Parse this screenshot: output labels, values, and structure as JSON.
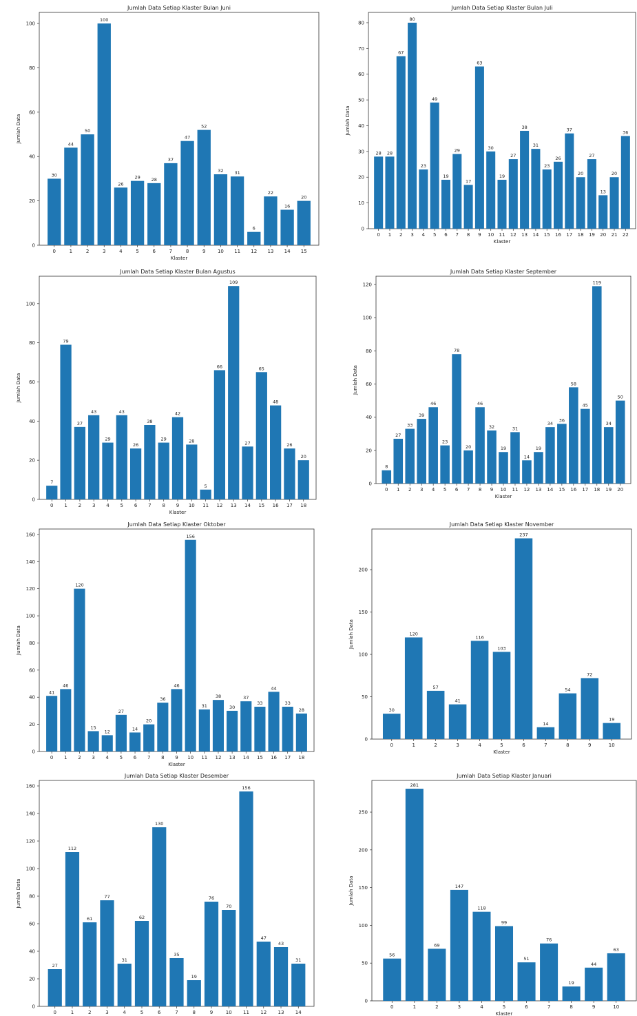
{
  "colors": {
    "bar": "#1f77b4",
    "axis": "#333333",
    "text": "#222222"
  },
  "chart_data": [
    {
      "type": "bar",
      "title": "Jumlah Data Setiap Klaster Bulan Juni",
      "xlabel": "Klaster",
      "ylabel": "Jumlah Data",
      "ylim": [
        0,
        105
      ],
      "yticks": [
        0,
        20,
        40,
        60,
        80,
        100
      ],
      "categories": [
        "0",
        "1",
        "2",
        "3",
        "4",
        "5",
        "6",
        "7",
        "8",
        "9",
        "10",
        "11",
        "12",
        "13",
        "14",
        "15"
      ],
      "values": [
        30,
        44,
        50,
        100,
        26,
        29,
        28,
        37,
        47,
        52,
        32,
        31,
        6,
        22,
        16,
        20
      ],
      "grid": false
    },
    {
      "type": "bar",
      "title": "Jumlah Data Setiap Klaster Bulan Juli",
      "xlabel": "Klaster",
      "ylabel": "Jumlah Data",
      "ylim": [
        0,
        84
      ],
      "yticks": [
        0,
        10,
        20,
        30,
        40,
        50,
        60,
        70,
        80
      ],
      "categories": [
        "0",
        "1",
        "2",
        "3",
        "4",
        "5",
        "6",
        "7",
        "8",
        "9",
        "10",
        "11",
        "12",
        "13",
        "14",
        "15",
        "16",
        "17",
        "18",
        "19",
        "20",
        "21",
        "22"
      ],
      "values": [
        28,
        28,
        67,
        80,
        23,
        49,
        19,
        29,
        17,
        63,
        30,
        19,
        27,
        38,
        31,
        23,
        26,
        37,
        20,
        27,
        13,
        20,
        36
      ],
      "grid": false
    },
    {
      "type": "bar",
      "title": "Jumlah Data Setiap Klaster Bulan Agustus",
      "xlabel": "Klaster",
      "ylabel": "Jumlah Data",
      "ylim": [
        0,
        114
      ],
      "yticks": [
        0,
        20,
        40,
        60,
        80,
        100
      ],
      "categories": [
        "0",
        "1",
        "2",
        "3",
        "4",
        "5",
        "6",
        "7",
        "8",
        "9",
        "10",
        "11",
        "12",
        "13",
        "14",
        "15",
        "16",
        "17",
        "18"
      ],
      "values": [
        7,
        79,
        37,
        43,
        29,
        43,
        26,
        38,
        29,
        42,
        28,
        5,
        66,
        109,
        27,
        65,
        48,
        26,
        20
      ],
      "grid": false
    },
    {
      "type": "bar",
      "title": "Jumlah Data Setiap Klaster September",
      "xlabel": "Klaster",
      "ylabel": "Jumlah Data",
      "ylim": [
        0,
        125
      ],
      "yticks": [
        0,
        20,
        40,
        60,
        80,
        100,
        120
      ],
      "categories": [
        "0",
        "1",
        "2",
        "3",
        "4",
        "5",
        "6",
        "7",
        "8",
        "9",
        "10",
        "11",
        "12",
        "13",
        "14",
        "15",
        "16",
        "17",
        "18",
        "19",
        "20"
      ],
      "values": [
        8,
        27,
        33,
        39,
        46,
        23,
        78,
        20,
        46,
        32,
        19,
        31,
        14,
        19,
        34,
        36,
        58,
        45,
        119,
        34,
        50
      ],
      "grid": false
    },
    {
      "type": "bar",
      "title": "Jumlah Data Setiap Klaster Oktober",
      "xlabel": "Klaster",
      "ylabel": "Jumlah Data",
      "ylim": [
        0,
        164
      ],
      "yticks": [
        0,
        20,
        40,
        60,
        80,
        100,
        120,
        140,
        160
      ],
      "categories": [
        "0",
        "1",
        "2",
        "3",
        "4",
        "5",
        "6",
        "7",
        "8",
        "9",
        "10",
        "11",
        "12",
        "13",
        "14",
        "15",
        "16",
        "17",
        "18"
      ],
      "values": [
        41,
        46,
        120,
        15,
        12,
        27,
        14,
        20,
        36,
        46,
        156,
        31,
        38,
        30,
        37,
        33,
        44,
        33,
        28
      ],
      "grid": false
    },
    {
      "type": "bar",
      "title": "Jumlah Data Setiap Klaster November",
      "xlabel": "Klaster",
      "ylabel": "Jumlah Data",
      "ylim": [
        0,
        248
      ],
      "yticks": [
        0,
        50,
        100,
        150,
        200
      ],
      "categories": [
        "0",
        "1",
        "2",
        "3",
        "4",
        "5",
        "6",
        "7",
        "8",
        "9",
        "10"
      ],
      "values": [
        30,
        120,
        57,
        41,
        116,
        103,
        237,
        14,
        54,
        72,
        19
      ],
      "grid": false
    },
    {
      "type": "bar",
      "title": "Jumlah Data Setiap Klaster Desember",
      "xlabel": "",
      "ylabel": "Jumlah Data",
      "ylim": [
        0,
        164
      ],
      "yticks": [
        0,
        20,
        40,
        60,
        80,
        100,
        120,
        140,
        160
      ],
      "categories": [
        "0",
        "1",
        "2",
        "3",
        "4",
        "5",
        "6",
        "7",
        "8",
        "9",
        "10",
        "11",
        "12",
        "13",
        "14"
      ],
      "values": [
        27,
        112,
        61,
        77,
        31,
        62,
        130,
        35,
        19,
        76,
        70,
        156,
        47,
        43,
        31
      ],
      "grid": false
    },
    {
      "type": "bar",
      "title": "Jumlah Data Setiap Klaster Januari",
      "xlabel": "Klaster",
      "ylabel": "Jumlah Data",
      "ylim": [
        0,
        292
      ],
      "yticks": [
        0,
        50,
        100,
        150,
        200,
        250
      ],
      "categories": [
        "0",
        "1",
        "2",
        "3",
        "4",
        "5",
        "6",
        "7",
        "8",
        "9",
        "10"
      ],
      "values": [
        56,
        281,
        69,
        147,
        118,
        99,
        51,
        76,
        19,
        44,
        63
      ],
      "grid": false
    }
  ]
}
